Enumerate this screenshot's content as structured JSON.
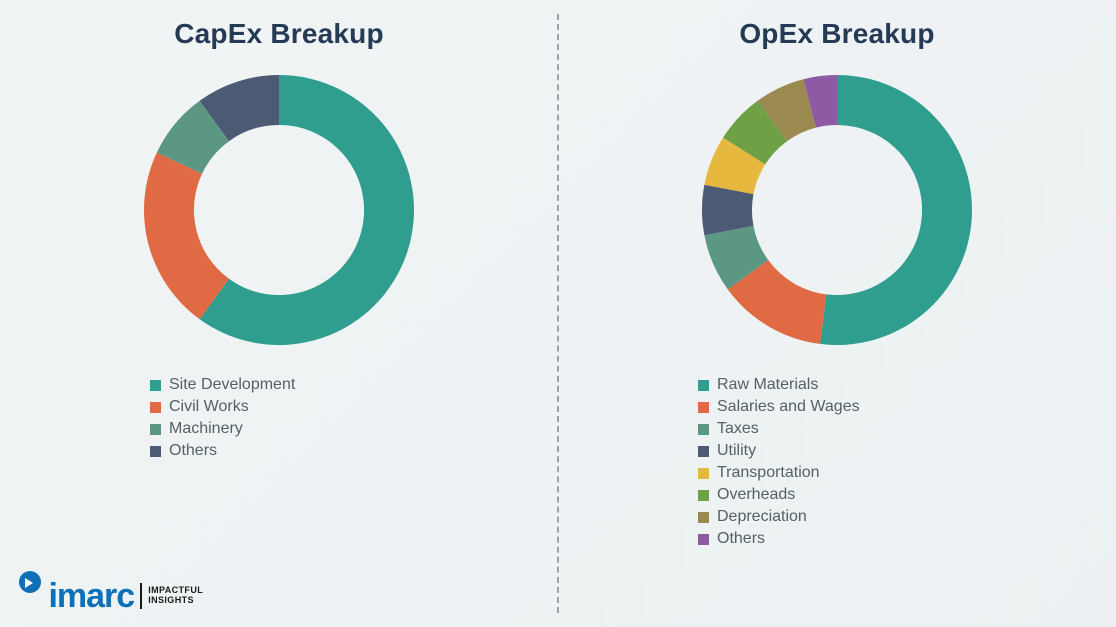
{
  "background_color": "#f4f6f7",
  "divider_color": "#9aa5ab",
  "title_color": "#253a55",
  "legend_text_color": "#555f66",
  "logo": {
    "brand": "imarc",
    "tagline_line1": "IMPACTFUL",
    "tagline_line2": "INSIGHTS",
    "brand_color": "#0e70b6"
  },
  "capex": {
    "title": "CapEx Breakup",
    "type": "donut",
    "inner_radius_ratio": 0.63,
    "ring_background": "#ffffff",
    "title_fontsize": 28,
    "legend_fontsize": 16,
    "start_angle_deg": 0,
    "segments": [
      {
        "label": "Site Development",
        "value": 60,
        "color": "#2f9e8f"
      },
      {
        "label": "Civil Works",
        "value": 22,
        "color": "#e06a43"
      },
      {
        "label": "Machinery",
        "value": 8,
        "color": "#5c9784"
      },
      {
        "label": "Others",
        "value": 10,
        "color": "#4c5a73"
      }
    ]
  },
  "opex": {
    "title": "OpEx Breakup",
    "type": "donut",
    "inner_radius_ratio": 0.63,
    "ring_background": "#ffffff",
    "title_fontsize": 28,
    "legend_fontsize": 16,
    "start_angle_deg": 0,
    "segments": [
      {
        "label": "Raw Materials",
        "value": 52,
        "color": "#2f9e8f"
      },
      {
        "label": "Salaries and Wages",
        "value": 13,
        "color": "#e06a43"
      },
      {
        "label": "Taxes",
        "value": 7,
        "color": "#5c9784"
      },
      {
        "label": "Utility",
        "value": 6,
        "color": "#4c5a73"
      },
      {
        "label": "Transportation",
        "value": 6,
        "color": "#e6b93e"
      },
      {
        "label": "Overheads",
        "value": 6,
        "color": "#6fa046"
      },
      {
        "label": "Depreciation",
        "value": 6,
        "color": "#9b8a4f"
      },
      {
        "label": "Others",
        "value": 4,
        "color": "#8e5aa3"
      }
    ]
  }
}
